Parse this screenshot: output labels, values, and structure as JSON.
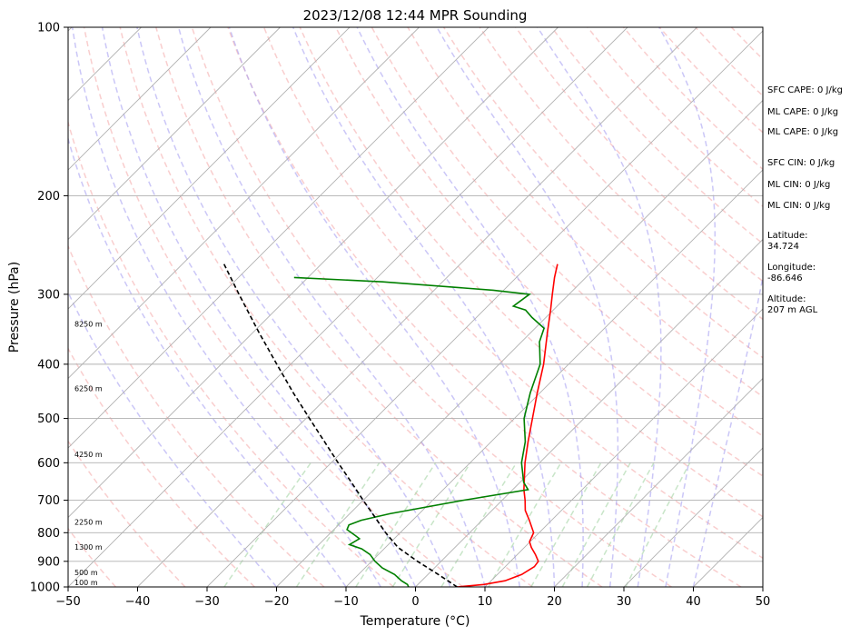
{
  "chart_data": {
    "type": "skew-t",
    "title": "2023/12/08 12:44 MPR Sounding",
    "xlabel": "Temperature (°C)",
    "ylabel": "Pressure (hPa)",
    "xlim": [
      -50,
      50
    ],
    "ylim": [
      1000,
      100
    ],
    "y_scale": "log",
    "x_ticks": [
      -50,
      -40,
      -30,
      -20,
      -10,
      0,
      10,
      20,
      30,
      40,
      50
    ],
    "y_ticks": [
      1000,
      900,
      800,
      700,
      600,
      500,
      400,
      300,
      200,
      100
    ],
    "grid": "pressure lines and skewed isotherms",
    "colors": {
      "temperature": "#ff0000",
      "dewpoint": "#008000",
      "parcel": "#000000",
      "dry_adiabats": "#f4a6a6",
      "moist_adiabats": "#a9a2f2",
      "mixing_ratio": "#a3d4a3",
      "isotherms": "#b0b0b0"
    },
    "series": [
      {
        "role": "temperature",
        "points": [
          [
            1000,
            6.0
          ],
          [
            990,
            9.5
          ],
          [
            975,
            12.0
          ],
          [
            950,
            13.5
          ],
          [
            920,
            14.2
          ],
          [
            900,
            14.0
          ],
          [
            875,
            12.6
          ],
          [
            850,
            11.0
          ],
          [
            830,
            9.9
          ],
          [
            800,
            9.2
          ],
          [
            760,
            6.8
          ],
          [
            730,
            4.8
          ],
          [
            700,
            3.3
          ],
          [
            670,
            1.6
          ],
          [
            600,
            -2.1
          ],
          [
            550,
            -4.7
          ],
          [
            500,
            -7.4
          ],
          [
            450,
            -10.4
          ],
          [
            400,
            -13.6
          ],
          [
            350,
            -17.7
          ],
          [
            320,
            -20.4
          ],
          [
            300,
            -22.4
          ],
          [
            280,
            -24.5
          ],
          [
            265,
            -26.0
          ]
        ]
      },
      {
        "role": "dewpoint",
        "points": [
          [
            1000,
            -1.0
          ],
          [
            990,
            -1.5
          ],
          [
            975,
            -2.9
          ],
          [
            950,
            -4.8
          ],
          [
            925,
            -7.5
          ],
          [
            900,
            -9.5
          ],
          [
            875,
            -11.2
          ],
          [
            855,
            -13.2
          ],
          [
            840,
            -15.6
          ],
          [
            820,
            -15.0
          ],
          [
            810,
            -16.0
          ],
          [
            790,
            -18.1
          ],
          [
            775,
            -18.5
          ],
          [
            760,
            -17.4
          ],
          [
            740,
            -14.2
          ],
          [
            700,
            -5.6
          ],
          [
            670,
            2.2
          ],
          [
            650,
            0.5
          ],
          [
            600,
            -2.6
          ],
          [
            550,
            -5.1
          ],
          [
            500,
            -8.6
          ],
          [
            450,
            -11.4
          ],
          [
            400,
            -14.1
          ],
          [
            370,
            -16.9
          ],
          [
            365,
            -17.4
          ],
          [
            345,
            -18.7
          ],
          [
            330,
            -22.0
          ],
          [
            320,
            -24.0
          ],
          [
            315,
            -26.3
          ],
          [
            300,
            -25.7
          ],
          [
            295,
            -31.5
          ],
          [
            285,
            -48.6
          ],
          [
            280,
            -62.0
          ]
        ]
      },
      {
        "role": "parcel",
        "points": [
          [
            1000,
            6.0
          ],
          [
            950,
            1.5
          ],
          [
            900,
            -3.4
          ],
          [
            850,
            -8.2
          ],
          [
            800,
            -12.1
          ],
          [
            750,
            -15.9
          ],
          [
            700,
            -20.0
          ],
          [
            650,
            -24.3
          ],
          [
            600,
            -29.0
          ],
          [
            550,
            -34.0
          ],
          [
            500,
            -39.5
          ],
          [
            450,
            -45.5
          ],
          [
            400,
            -52.0
          ],
          [
            350,
            -59.3
          ],
          [
            300,
            -67.5
          ],
          [
            265,
            -74.0
          ]
        ]
      }
    ],
    "height_labels": [
      {
        "pressure": 1000,
        "label": "100 m"
      },
      {
        "pressure": 960,
        "label": "500 m"
      },
      {
        "pressure": 865,
        "label": "1300 m"
      },
      {
        "pressure": 780,
        "label": "2250 m"
      },
      {
        "pressure": 590,
        "label": "4250 m"
      },
      {
        "pressure": 450,
        "label": "6250 m"
      },
      {
        "pressure": 345,
        "label": "8250 m"
      }
    ]
  },
  "side_panel": {
    "sfc_cape": "SFC CAPE: 0 J/kg",
    "ml_cape_1": "ML CAPE: 0 J/kg",
    "ml_cape_2": "ML CAPE: 0 J/kg",
    "sfc_cin": "SFC CIN: 0 J/kg",
    "ml_cin_1": "ML CIN: 0 J/kg",
    "ml_cin_2": "ML CIN: 0 J/kg",
    "latitude_label": "Latitude:",
    "latitude_value": "34.724",
    "longitude_label": "Longitude:",
    "longitude_value": "-86.646",
    "altitude_label": "Altitude:",
    "altitude_value": "207 m AGL"
  }
}
